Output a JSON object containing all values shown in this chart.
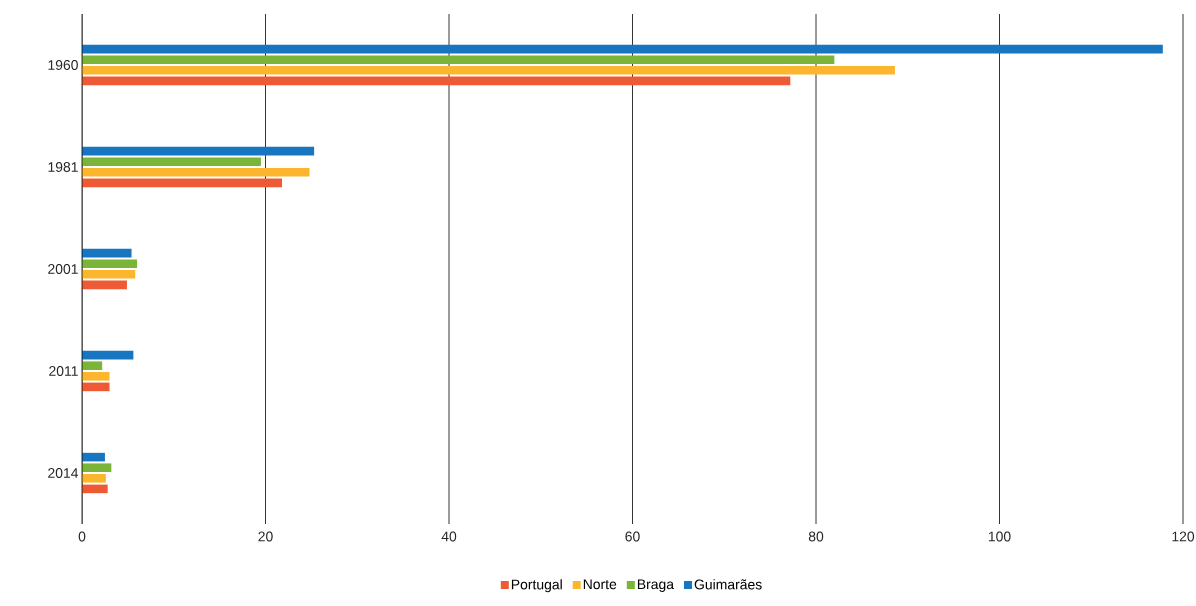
{
  "chart_data": {
    "type": "bar",
    "orientation": "horizontal",
    "categories": [
      "1960",
      "1981",
      "2001",
      "2011",
      "2014"
    ],
    "series": [
      {
        "name": "Portugal",
        "color": "#ee5a35",
        "values": [
          77.2,
          21.8,
          4.9,
          3.0,
          2.8
        ]
      },
      {
        "name": "Norte",
        "color": "#fbb62d",
        "values": [
          88.6,
          24.8,
          5.8,
          3.0,
          2.6
        ]
      },
      {
        "name": "Braga",
        "color": "#7ab539",
        "values": [
          82,
          19.5,
          6.0,
          2.2,
          3.2
        ]
      },
      {
        "name": "Guimarães",
        "color": "#1876c0",
        "values": [
          117.8,
          25.3,
          5.4,
          5.6,
          2.5
        ]
      }
    ],
    "xlim": [
      0,
      120
    ],
    "xticks": [
      0,
      20,
      40,
      60,
      80,
      100,
      120
    ],
    "grid": "x",
    "legend": "bottom"
  }
}
